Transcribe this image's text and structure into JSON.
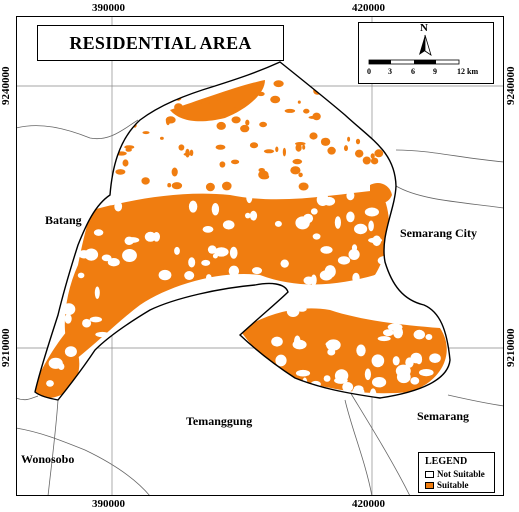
{
  "title": "RESIDENTIAL AREA",
  "grid": {
    "x_ticks": [
      "390000",
      "420000"
    ],
    "y_ticks": [
      "9240000",
      "9210000"
    ]
  },
  "north_arrow": {
    "letter": "N"
  },
  "scale_bar": {
    "labels": [
      "0",
      "3",
      "6",
      "9",
      "12 km"
    ]
  },
  "regions": {
    "batang": "Batang",
    "semarang_city": "Semarang City",
    "temanggung": "Temanggung",
    "semarang": "Semarang",
    "wonosobo": "Wonosobo"
  },
  "legend": {
    "title": "LEGEND",
    "items": [
      {
        "label": "Not Suitable",
        "color": "#ffffff"
      },
      {
        "label": "Suitable",
        "color": "#f07d10"
      }
    ]
  },
  "colors": {
    "suitable": "#f07d10",
    "not_suitable": "#ffffff",
    "outline": "#000000",
    "boundary": "#555555"
  }
}
